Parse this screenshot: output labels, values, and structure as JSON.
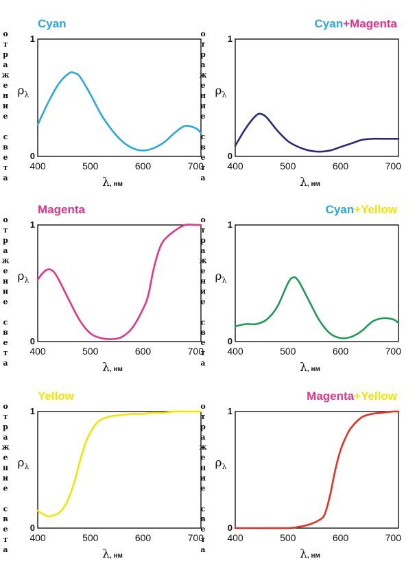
{
  "labels": {
    "y_vertical": "отражение света",
    "rho": "ρ",
    "rho_sub": "λ",
    "x_lambda": "λ",
    "x_unit": ", нм"
  },
  "colors": {
    "cyan": "#29a8e0",
    "magenta": "#e8338a",
    "yellow": "#f2e600",
    "axis": "#000000"
  },
  "chart_data": [
    {
      "type": "line",
      "title_parts": [
        {
          "text": "Cyan",
          "color": "#29a8e0"
        }
      ],
      "xlim": [
        400,
        710
      ],
      "ylim": [
        0,
        1
      ],
      "xticks": [
        "400",
        "500",
        "600",
        "700"
      ],
      "yticks": [
        "0",
        "1"
      ],
      "line_color": "#29a8e0",
      "x": [
        400,
        420,
        440,
        460,
        470,
        480,
        500,
        520,
        540,
        560,
        580,
        600,
        620,
        640,
        660,
        680,
        700,
        710
      ],
      "y": [
        0.27,
        0.46,
        0.62,
        0.71,
        0.71,
        0.68,
        0.53,
        0.36,
        0.23,
        0.13,
        0.07,
        0.05,
        0.07,
        0.12,
        0.2,
        0.26,
        0.24,
        0.2
      ]
    },
    {
      "type": "line",
      "title_parts": [
        {
          "text": "Cyan",
          "color": "#29a8e0"
        },
        {
          "text": "+",
          "color": "#e8338a"
        },
        {
          "text": "Magenta",
          "color": "#e8338a"
        }
      ],
      "xlim": [
        400,
        710
      ],
      "ylim": [
        0,
        1
      ],
      "xticks": [
        "400",
        "500",
        "600",
        "700"
      ],
      "yticks": [
        "0",
        "1"
      ],
      "line_color": "#2b2a7a",
      "x": [
        400,
        420,
        440,
        450,
        460,
        480,
        500,
        520,
        540,
        560,
        580,
        600,
        620,
        640,
        660,
        680,
        700,
        710
      ],
      "y": [
        0.09,
        0.24,
        0.35,
        0.36,
        0.33,
        0.22,
        0.13,
        0.08,
        0.05,
        0.04,
        0.05,
        0.08,
        0.11,
        0.14,
        0.15,
        0.15,
        0.15,
        0.15
      ]
    },
    {
      "type": "line",
      "title_parts": [
        {
          "text": "Magenta",
          "color": "#e8338a"
        }
      ],
      "xlim": [
        400,
        710
      ],
      "ylim": [
        0,
        1
      ],
      "xticks": [
        "400",
        "500",
        "600",
        "700"
      ],
      "yticks": [
        "0",
        "1"
      ],
      "line_color": "#e8338a",
      "x": [
        400,
        410,
        420,
        430,
        440,
        460,
        480,
        500,
        520,
        540,
        560,
        580,
        600,
        610,
        620,
        630,
        640,
        660,
        680,
        700,
        710
      ],
      "y": [
        0.53,
        0.59,
        0.62,
        0.6,
        0.53,
        0.35,
        0.18,
        0.07,
        0.03,
        0.02,
        0.04,
        0.12,
        0.28,
        0.4,
        0.62,
        0.78,
        0.87,
        0.95,
        1.0,
        1.0,
        1.0
      ]
    },
    {
      "type": "line",
      "title_parts": [
        {
          "text": "Cyan",
          "color": "#29a8e0"
        },
        {
          "text": "+",
          "color": "#f2e600"
        },
        {
          "text": "Yellow",
          "color": "#f2e600"
        }
      ],
      "xlim": [
        400,
        710
      ],
      "ylim": [
        0,
        1
      ],
      "xticks": [
        "400",
        "500",
        "600",
        "700"
      ],
      "yticks": [
        "0",
        "1"
      ],
      "line_color": "#1f9a52",
      "x": [
        400,
        420,
        440,
        460,
        480,
        500,
        510,
        520,
        540,
        560,
        580,
        600,
        620,
        640,
        660,
        680,
        700,
        710
      ],
      "y": [
        0.13,
        0.15,
        0.15,
        0.19,
        0.3,
        0.5,
        0.55,
        0.52,
        0.35,
        0.18,
        0.07,
        0.03,
        0.04,
        0.09,
        0.17,
        0.2,
        0.19,
        0.16
      ]
    },
    {
      "type": "line",
      "title_parts": [
        {
          "text": "Yellow",
          "color": "#f2e600"
        }
      ],
      "xlim": [
        400,
        710
      ],
      "ylim": [
        0,
        1
      ],
      "xticks": [
        "400",
        "500",
        "600",
        "700"
      ],
      "yticks": [
        "0",
        "1"
      ],
      "line_color": "#f2e600",
      "x": [
        400,
        410,
        420,
        430,
        440,
        450,
        460,
        470,
        480,
        490,
        500,
        510,
        520,
        540,
        560,
        580,
        600,
        620,
        640,
        660,
        680,
        700,
        710
      ],
      "y": [
        0.15,
        0.12,
        0.1,
        0.11,
        0.13,
        0.18,
        0.27,
        0.4,
        0.57,
        0.72,
        0.82,
        0.89,
        0.93,
        0.96,
        0.97,
        0.98,
        0.98,
        0.99,
        0.99,
        1.0,
        1.0,
        1.0,
        1.0
      ]
    },
    {
      "type": "line",
      "title_parts": [
        {
          "text": "Magenta",
          "color": "#e8338a"
        },
        {
          "text": "+",
          "color": "#f2e600"
        },
        {
          "text": "Yellow",
          "color": "#f2e600"
        }
      ],
      "xlim": [
        400,
        710
      ],
      "ylim": [
        0,
        1
      ],
      "xticks": [
        "400",
        "500",
        "600",
        "700"
      ],
      "yticks": [
        "0",
        "1"
      ],
      "line_color": "#e53022",
      "x": [
        400,
        450,
        500,
        520,
        540,
        560,
        570,
        580,
        590,
        600,
        610,
        620,
        640,
        660,
        680,
        700,
        710
      ],
      "y": [
        0.0,
        0.0,
        0.0,
        0.01,
        0.03,
        0.07,
        0.12,
        0.28,
        0.5,
        0.67,
        0.78,
        0.86,
        0.95,
        0.98,
        0.99,
        1.0,
        1.0
      ]
    }
  ]
}
